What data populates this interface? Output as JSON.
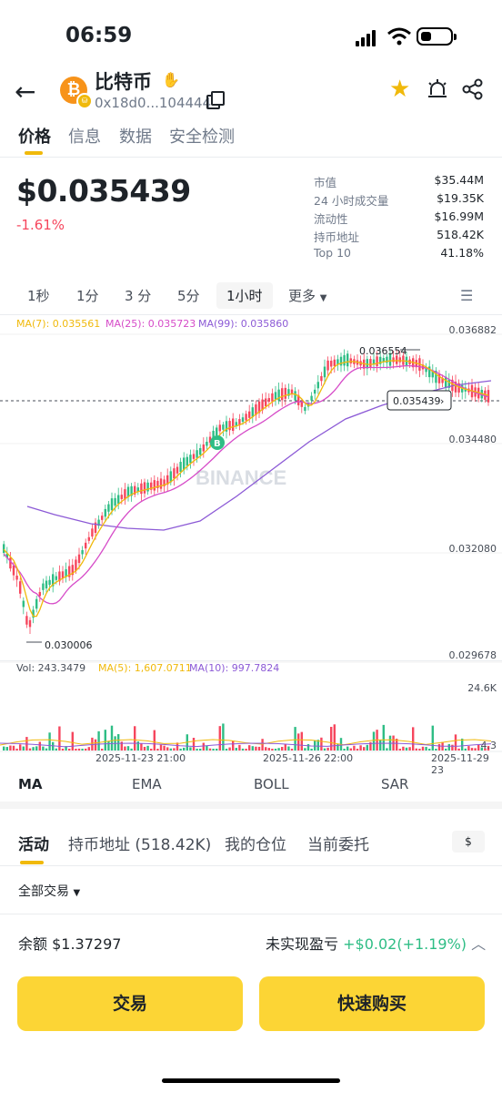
{
  "status_bar": {
    "time": "06:59"
  },
  "token": {
    "name": "比特币",
    "address": "0x18d0...104444",
    "icon_symbol": "₿",
    "chain_icon_symbol": "⛁"
  },
  "tabs": [
    "价格",
    "信息",
    "数据",
    "安全检测"
  ],
  "price": {
    "value": "$0.035439",
    "change": "-1.61%"
  },
  "stats": [
    {
      "label": "市值",
      "value": "$35.44M"
    },
    {
      "label": "24 小时成交量",
      "value": "$19.35K"
    },
    {
      "label": "流动性",
      "value": "$16.99M"
    },
    {
      "label": "持币地址",
      "value": "518.42K"
    },
    {
      "label": "Top 10",
      "value": "41.18%"
    }
  ],
  "intervals": [
    "1秒",
    "1分",
    "3 分",
    "5分",
    "1小时"
  ],
  "interval_more": "更多",
  "chart": {
    "ma_labels": [
      "MA(7): 0.035561",
      "MA(25): 0.035723",
      "MA(99): 0.035860"
    ],
    "axis_ticks": [
      "0.036882",
      "0.034480",
      "0.032080",
      "0.029678"
    ],
    "high_marker": "0.036554",
    "low_marker": "0.030006",
    "current_price_tag": "0.035439",
    "buy_marker": "B",
    "watermark": "BINANCE",
    "vol_labels": [
      "Vol: 243.3479",
      "MA(5): 1,607.0711",
      "MA(10): 997.7824"
    ],
    "vol_axis": [
      "24.6K",
      "4.3"
    ],
    "date_labels": [
      "2025-11-23 21:00",
      "2025-11-26 22:00",
      "2025-11-29 23"
    ],
    "colors": {
      "up": "#2ebd85",
      "down": "#f6465d",
      "ma7": "#f0b90b",
      "ma25": "#d64bc8",
      "ma99": "#8c5ad6"
    }
  },
  "indicators": [
    "MA",
    "EMA",
    "BOLL",
    "SAR"
  ],
  "bottom_tabs": [
    "活动",
    "持币地址 (518.42K)",
    "我的仓位",
    "当前委托"
  ],
  "currency_toggle": "$",
  "filter": "全部交易",
  "balance": "余额 $1.37297",
  "pnl_label": "未实现盈亏",
  "pnl_value": "+$0.02(+1.19%)",
  "buttons": {
    "trade": "交易",
    "quick_buy": "快速购买"
  }
}
